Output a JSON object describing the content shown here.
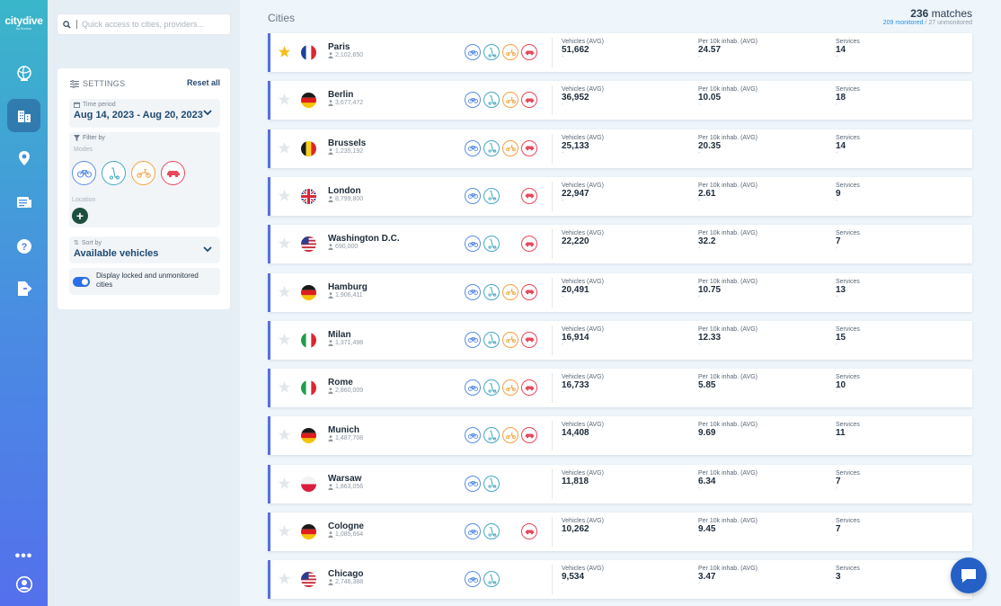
{
  "app": {
    "logo": "citydive",
    "logo_sub": "by fluctuo"
  },
  "nav": [
    {
      "name": "globe-icon",
      "active": false
    },
    {
      "name": "cities-icon",
      "active": true
    },
    {
      "name": "location-pin-icon",
      "active": false
    },
    {
      "name": "report-icon",
      "active": false
    },
    {
      "name": "help-icon",
      "active": false
    },
    {
      "name": "export-icon",
      "active": false
    }
  ],
  "search": {
    "placeholder": "Quick access to cities, providers..."
  },
  "settings": {
    "title": "SETTINGS",
    "reset_label": "Reset all",
    "time_period_label": "Time period",
    "time_period_value": "Aug 14, 2023 - Aug 20, 2023",
    "filter_label": "Filter by",
    "modes_label": "Modes",
    "location_label": "Location",
    "sort_label": "Sort by",
    "sort_value": "Available vehicles",
    "toggle_label": "Display locked and unmonitored cities"
  },
  "mode_colors": {
    "bike": "#5b8fe6",
    "scooter": "#45a8c4",
    "moped": "#f2a341",
    "car": "#e8475d"
  },
  "main": {
    "title": "Cities",
    "matches_count": "236",
    "matches_word": "matches",
    "monitored": "209 monitored",
    "unmonitored": "/ 27 unmonitored"
  },
  "columns": {
    "vehicles": "Vehicles (AVG)",
    "per10k": "Per 10k inhab. (AVG)",
    "services": "Services"
  },
  "cities": [
    {
      "name": "Paris",
      "population": "2,102,650",
      "flag": "fr",
      "starred": true,
      "modes": [
        "bike",
        "scooter",
        "moped",
        "car"
      ],
      "vehicles": "51,662",
      "per10k": "24.57",
      "services": "14"
    },
    {
      "name": "Berlin",
      "population": "3,677,472",
      "flag": "de",
      "starred": false,
      "modes": [
        "bike",
        "scooter",
        "moped",
        "car"
      ],
      "vehicles": "36,952",
      "per10k": "10.05",
      "services": "18"
    },
    {
      "name": "Brussels",
      "population": "1,235,192",
      "flag": "be",
      "starred": false,
      "modes": [
        "bike",
        "scooter",
        "moped",
        "car"
      ],
      "vehicles": "25,133",
      "per10k": "20.35",
      "services": "14"
    },
    {
      "name": "London",
      "population": "8,799,800",
      "flag": "gb",
      "starred": false,
      "modes": [
        "bike",
        "scooter",
        "car"
      ],
      "vehicles": "22,947",
      "per10k": "2.61",
      "services": "9"
    },
    {
      "name": "Washington D.C.",
      "population": "690,000",
      "flag": "us",
      "starred": false,
      "modes": [
        "bike",
        "scooter",
        "car"
      ],
      "vehicles": "22,220",
      "per10k": "32.2",
      "services": "7"
    },
    {
      "name": "Hamburg",
      "population": "1,906,411",
      "flag": "de",
      "starred": false,
      "modes": [
        "bike",
        "scooter",
        "moped",
        "car"
      ],
      "vehicles": "20,491",
      "per10k": "10.75",
      "services": "13"
    },
    {
      "name": "Milan",
      "population": "1,371,498",
      "flag": "it",
      "starred": false,
      "modes": [
        "bike",
        "scooter",
        "moped",
        "car"
      ],
      "vehicles": "16,914",
      "per10k": "12.33",
      "services": "15"
    },
    {
      "name": "Rome",
      "population": "2,860,009",
      "flag": "it",
      "starred": false,
      "modes": [
        "bike",
        "scooter",
        "moped",
        "car"
      ],
      "vehicles": "16,733",
      "per10k": "5.85",
      "services": "10"
    },
    {
      "name": "Munich",
      "population": "1,487,708",
      "flag": "de",
      "starred": false,
      "modes": [
        "bike",
        "scooter",
        "moped",
        "car"
      ],
      "vehicles": "14,408",
      "per10k": "9.69",
      "services": "11"
    },
    {
      "name": "Warsaw",
      "population": "1,863,056",
      "flag": "pl",
      "starred": false,
      "modes": [
        "bike",
        "scooter"
      ],
      "vehicles": "11,818",
      "per10k": "6.34",
      "services": "7"
    },
    {
      "name": "Cologne",
      "population": "1,085,664",
      "flag": "de",
      "starred": false,
      "modes": [
        "bike",
        "scooter",
        "car"
      ],
      "vehicles": "10,262",
      "per10k": "9.45",
      "services": "7"
    },
    {
      "name": "Chicago",
      "population": "2,746,388",
      "flag": "us",
      "starred": false,
      "modes": [
        "bike",
        "scooter"
      ],
      "vehicles": "9,534",
      "per10k": "3.47",
      "services": "3"
    }
  ]
}
